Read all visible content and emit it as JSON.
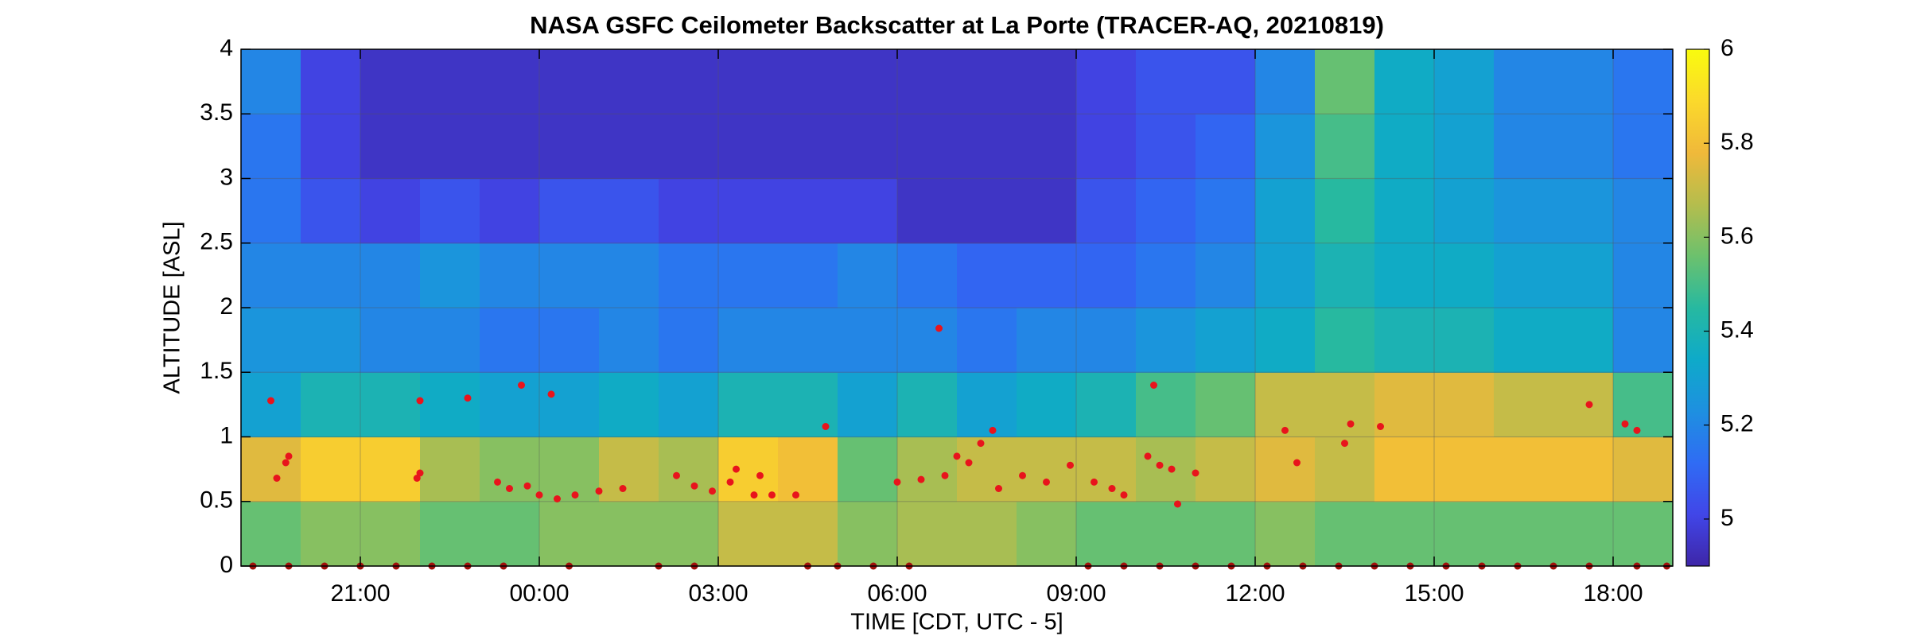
{
  "chart_data": {
    "type": "heatmap",
    "title": "NASA GSFC Ceilometer Backscatter at La Porte (TRACER-AQ, 20210819)",
    "x_label": "TIME [CDT, UTC - 5]",
    "y_label": "ALTITUDE [ASL]",
    "xlim": [
      19,
      43
    ],
    "ylim": [
      0,
      4
    ],
    "clim": [
      4.9,
      6
    ],
    "xticks": [
      {
        "value": 21,
        "label": "21:00"
      },
      {
        "value": 24,
        "label": "00:00"
      },
      {
        "value": 27,
        "label": "03:00"
      },
      {
        "value": 30,
        "label": "06:00"
      },
      {
        "value": 33,
        "label": "09:00"
      },
      {
        "value": 36,
        "label": "12:00"
      },
      {
        "value": 39,
        "label": "15:00"
      },
      {
        "value": 42,
        "label": "18:00"
      }
    ],
    "yticks": [
      0,
      0.5,
      1,
      1.5,
      2,
      2.5,
      3,
      3.5,
      4
    ],
    "cticks": [
      5,
      5.2,
      5.4,
      5.6,
      5.8,
      6
    ],
    "grid": true,
    "colormap": [
      "#3e26a8",
      "#4146e8",
      "#2f6cf4",
      "#1e90e0",
      "#0eaac9",
      "#27b9a0",
      "#6cc16d",
      "#b5bd4d",
      "#f0b93a",
      "#fbd92b",
      "#f9fb0e"
    ],
    "x_bins": [
      19,
      20,
      21,
      22,
      23,
      24,
      25,
      26,
      27,
      28,
      29,
      30,
      31,
      32,
      33,
      34,
      35,
      36,
      37,
      38,
      39,
      40,
      41,
      42,
      43
    ],
    "y_bins": [
      0,
      0.5,
      1,
      1.5,
      2,
      2.5,
      3,
      3.5,
      4
    ],
    "z": [
      [
        5.55,
        5.75,
        5.3,
        5.25,
        5.2,
        5.15,
        5.15,
        5.2
      ],
      [
        5.6,
        5.85,
        5.4,
        5.25,
        5.2,
        5.05,
        5.0,
        5.0
      ],
      [
        5.6,
        5.85,
        5.4,
        5.2,
        5.2,
        5.0,
        4.95,
        4.95
      ],
      [
        5.55,
        5.65,
        5.35,
        5.2,
        5.25,
        5.05,
        4.95,
        4.95
      ],
      [
        5.55,
        5.6,
        5.3,
        5.15,
        5.2,
        5.0,
        4.95,
        4.95
      ],
      [
        5.6,
        5.6,
        5.3,
        5.15,
        5.2,
        5.05,
        4.95,
        4.95
      ],
      [
        5.6,
        5.7,
        5.35,
        5.2,
        5.2,
        5.05,
        4.95,
        4.95
      ],
      [
        5.6,
        5.65,
        5.3,
        5.15,
        5.15,
        5.0,
        4.95,
        4.95
      ],
      [
        5.7,
        5.85,
        5.4,
        5.2,
        5.15,
        5.0,
        4.95,
        4.95
      ],
      [
        5.7,
        5.8,
        5.4,
        5.2,
        5.15,
        5.0,
        4.95,
        4.95
      ],
      [
        5.6,
        5.55,
        5.3,
        5.2,
        5.2,
        5.0,
        4.95,
        4.95
      ],
      [
        5.65,
        5.65,
        5.4,
        5.2,
        5.15,
        4.95,
        4.95,
        4.95
      ],
      [
        5.65,
        5.7,
        5.3,
        5.15,
        5.1,
        4.95,
        4.95,
        4.95
      ],
      [
        5.6,
        5.7,
        5.35,
        5.2,
        5.1,
        4.95,
        4.95,
        4.95
      ],
      [
        5.55,
        5.7,
        5.4,
        5.2,
        5.1,
        5.05,
        5.0,
        5.0
      ],
      [
        5.55,
        5.65,
        5.5,
        5.25,
        5.15,
        5.1,
        5.05,
        5.05
      ],
      [
        5.55,
        5.7,
        5.55,
        5.3,
        5.2,
        5.15,
        5.1,
        5.05
      ],
      [
        5.6,
        5.75,
        5.7,
        5.35,
        5.3,
        5.3,
        5.25,
        5.2
      ],
      [
        5.55,
        5.7,
        5.7,
        5.45,
        5.4,
        5.45,
        5.5,
        5.55
      ],
      [
        5.55,
        5.8,
        5.75,
        5.4,
        5.35,
        5.35,
        5.35,
        5.35
      ],
      [
        5.55,
        5.8,
        5.75,
        5.4,
        5.35,
        5.3,
        5.3,
        5.3
      ],
      [
        5.55,
        5.8,
        5.7,
        5.35,
        5.3,
        5.25,
        5.2,
        5.2
      ],
      [
        5.55,
        5.8,
        5.7,
        5.35,
        5.3,
        5.25,
        5.2,
        5.2
      ],
      [
        5.55,
        5.75,
        5.5,
        5.2,
        5.2,
        5.2,
        5.15,
        5.15
      ]
    ],
    "points": [
      {
        "color": "#e8141c",
        "x": [
          19.5,
          19.6,
          19.75,
          19.8,
          21.95,
          22.0,
          22.0,
          22.8,
          23.3,
          23.5,
          23.7,
          23.8,
          24.0,
          24.2,
          24.3,
          24.6,
          25.0,
          25.4,
          26.3,
          26.6,
          26.9,
          27.2,
          27.3,
          27.6,
          27.7,
          27.9,
          28.3,
          28.8,
          30.0,
          30.4,
          30.7,
          30.8,
          31.0,
          31.2,
          31.4,
          31.6,
          31.7,
          32.1,
          32.5,
          32.9,
          33.3,
          33.6,
          33.8,
          34.2,
          34.3,
          34.4,
          34.6,
          34.7,
          35.0,
          36.5,
          36.7,
          37.5,
          37.6,
          38.1,
          41.6,
          42.2,
          42.4
        ],
        "values": [
          1.28,
          0.68,
          0.8,
          0.85,
          0.68,
          0.72,
          1.28,
          1.3,
          0.65,
          0.6,
          1.4,
          0.62,
          0.55,
          1.33,
          0.52,
          0.55,
          0.58,
          0.6,
          0.7,
          0.62,
          0.58,
          0.65,
          0.75,
          0.55,
          0.7,
          0.55,
          0.55,
          1.08,
          0.65,
          0.67,
          1.84,
          0.7,
          0.85,
          0.8,
          0.95,
          1.05,
          0.6,
          0.7,
          0.65,
          0.78,
          0.65,
          0.6,
          0.55,
          0.85,
          1.4,
          0.78,
          0.75,
          0.48,
          0.72,
          1.05,
          0.8,
          0.95,
          1.1,
          1.08,
          1.25,
          1.1,
          1.05
        ]
      },
      {
        "color": "#a0100c",
        "x": [
          19.2,
          19.8,
          20.4,
          21.0,
          21.6,
          22.2,
          22.8,
          23.4,
          24.5,
          26.0,
          26.6,
          28.5,
          29.0,
          29.6,
          30.2,
          33.2,
          33.8,
          34.4,
          35.0,
          35.6,
          36.2,
          36.8,
          37.4,
          38.0,
          38.6,
          39.2,
          39.8,
          40.4,
          41.0,
          41.6,
          42.4,
          42.9
        ],
        "values": [
          0.0,
          0.0,
          0.0,
          0.0,
          0.0,
          0.0,
          0.0,
          0.0,
          0.0,
          0.0,
          0.0,
          0.0,
          0.0,
          0.0,
          0.0,
          0.0,
          0.0,
          0.0,
          0.0,
          0.0,
          0.0,
          0.0,
          0.0,
          0.0,
          0.0,
          0.0,
          0.0,
          0.0,
          0.0,
          0.0,
          0.0,
          0.0
        ]
      }
    ]
  }
}
